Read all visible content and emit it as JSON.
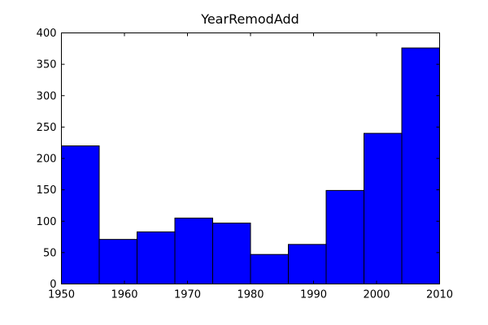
{
  "chart_data": {
    "type": "bar",
    "title": "YearRemodAdd",
    "xlabel": "",
    "ylabel": "",
    "xlim": [
      1950,
      2010
    ],
    "ylim": [
      0,
      400
    ],
    "x_ticks": [
      1950,
      1960,
      1970,
      1980,
      1990,
      2000,
      2010
    ],
    "y_ticks": [
      0,
      50,
      100,
      150,
      200,
      250,
      300,
      350,
      400
    ],
    "bin_edges": [
      1950,
      1956,
      1962,
      1968,
      1974,
      1980,
      1986,
      1992,
      1998,
      2004,
      2010
    ],
    "values": [
      220,
      71,
      83,
      105,
      97,
      47,
      63,
      149,
      240,
      376
    ],
    "bar_color": "#0000ff",
    "edge_color": "#000000",
    "grid": false,
    "legend": "none"
  }
}
